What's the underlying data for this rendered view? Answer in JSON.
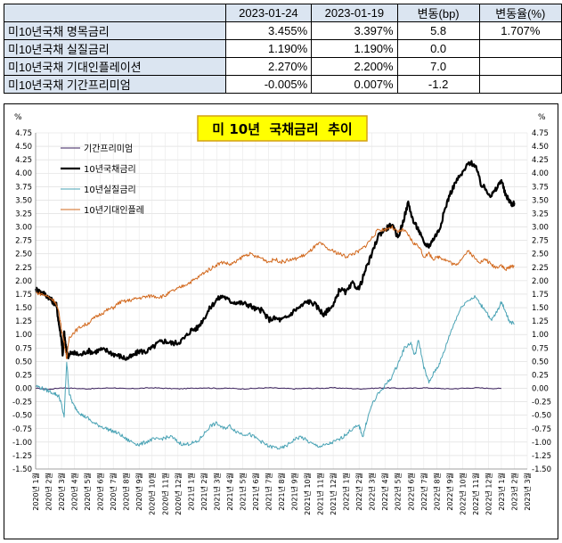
{
  "table": {
    "headers": [
      "",
      "2023-01-24",
      "2023-01-19",
      "변동(bp)",
      "변동율(%)"
    ],
    "rows": [
      {
        "label": "미10년국채 명목금리",
        "v1": "3.455%",
        "v2": "3.397%",
        "bp": "5.8",
        "pct": "1.707%"
      },
      {
        "label": "미10년국채 실질금리",
        "v1": "1.190%",
        "v2": "1.190%",
        "bp": "0.0",
        "pct": ""
      },
      {
        "label": "미10년국채 기대인플레이션",
        "v1": "2.270%",
        "v2": "2.200%",
        "bp": "7.0",
        "pct": ""
      },
      {
        "label": "미10년국채 기간프리미엄",
        "v1": "-0.005%",
        "v2": "0.007%",
        "bp": "-1.2",
        "pct": ""
      }
    ]
  },
  "chart_data": {
    "type": "line",
    "title": "미 10년  국채금리  추이",
    "ylabel_left": "%",
    "ylabel_right": "%",
    "ylim": [
      -1.5,
      4.75
    ],
    "ytick_step": 0.25,
    "ytick_labels": [
      "4.75",
      "4.50",
      "4.25",
      "4.00",
      "3.75",
      "3.50",
      "3.25",
      "3.00",
      "2.75",
      "2.50",
      "2.25",
      "2.00",
      "1.75",
      "1.50",
      "1.25",
      "1.00",
      "0.75",
      "0.50",
      "0.25",
      "0.00",
      "-0.25",
      "-0.50",
      "-0.75",
      "-1.00",
      "-1.25",
      "-1.50"
    ],
    "x_tick_labels": [
      "2020년 1월",
      "2020년 2월",
      "2020년 3월",
      "2020년 4월",
      "2020년 5월",
      "2020년 6월",
      "2020년 7월",
      "2020년 8월",
      "2020년 9월",
      "2020년 10월",
      "2020년 11월",
      "2020년 12월",
      "2021년 1월",
      "2021년 2월",
      "2021년 3월",
      "2021년 4월",
      "2021년 5월",
      "2021년 6월",
      "2021년 7월",
      "2021년 8월",
      "2021년 9월",
      "2021년 10월",
      "2021년 11월",
      "2021년 12월",
      "2022년 1월",
      "2022년 2월",
      "2022년 3월",
      "2022년 4월",
      "2022년 5월",
      "2022년 6월",
      "2022년 7월",
      "2022년 8월",
      "2022년 9월",
      "2022년 10월",
      "2022년 11월",
      "2022년 12월",
      "2023년 1월",
      "2023년 2월",
      "2023년 3월"
    ],
    "legend_placement": "top-left",
    "series": [
      {
        "name": "기간프리미엄",
        "color": "#3a1f5c",
        "width": 1,
        "points": [
          [
            0,
            0.0
          ],
          [
            1,
            -0.02
          ],
          [
            2,
            0.01
          ],
          [
            3,
            0.0
          ],
          [
            4,
            -0.01
          ],
          [
            5,
            0.0
          ],
          [
            6,
            0.01
          ],
          [
            7,
            -0.01
          ],
          [
            8,
            0.0
          ],
          [
            9,
            0.01
          ],
          [
            10,
            0.0
          ],
          [
            11,
            -0.01
          ],
          [
            12,
            0.0
          ],
          [
            13,
            0.01
          ],
          [
            14,
            0.0
          ],
          [
            15,
            0.0
          ],
          [
            16,
            -0.01
          ],
          [
            17,
            0.0
          ],
          [
            18,
            0.01
          ],
          [
            19,
            0.0
          ],
          [
            20,
            -0.01
          ],
          [
            21,
            0.0
          ],
          [
            22,
            0.0
          ],
          [
            23,
            0.01
          ],
          [
            24,
            0.0
          ],
          [
            25,
            -0.01
          ],
          [
            26,
            0.0
          ],
          [
            27,
            0.01
          ],
          [
            28,
            0.0
          ],
          [
            29,
            0.0
          ],
          [
            30,
            0.01
          ],
          [
            31,
            0.0
          ],
          [
            32,
            -0.01
          ],
          [
            33,
            0.0
          ],
          [
            34,
            0.01
          ],
          [
            35,
            0.0
          ],
          [
            36,
            -0.005
          ]
        ]
      },
      {
        "name": "10년국채금리",
        "color": "#000000",
        "width": 2.2,
        "points": [
          [
            0,
            1.85
          ],
          [
            0.3,
            1.8
          ],
          [
            0.6,
            1.77
          ],
          [
            1.0,
            1.7
          ],
          [
            1.3,
            1.62
          ],
          [
            1.6,
            1.55
          ],
          [
            1.8,
            1.2
          ],
          [
            2.0,
            0.9
          ],
          [
            2.1,
            0.6
          ],
          [
            2.2,
            1.05
          ],
          [
            2.35,
            0.75
          ],
          [
            2.5,
            0.6
          ],
          [
            2.7,
            0.65
          ],
          [
            3.0,
            0.65
          ],
          [
            3.5,
            0.62
          ],
          [
            4.0,
            0.7
          ],
          [
            4.5,
            0.67
          ],
          [
            5.0,
            0.72
          ],
          [
            5.5,
            0.7
          ],
          [
            6.0,
            0.64
          ],
          [
            6.5,
            0.6
          ],
          [
            7.0,
            0.55
          ],
          [
            7.5,
            0.6
          ],
          [
            8.0,
            0.69
          ],
          [
            8.5,
            0.68
          ],
          [
            9.0,
            0.75
          ],
          [
            9.5,
            0.85
          ],
          [
            10.0,
            0.88
          ],
          [
            10.5,
            0.84
          ],
          [
            11.0,
            0.85
          ],
          [
            11.5,
            0.93
          ],
          [
            12.0,
            1.08
          ],
          [
            12.5,
            1.12
          ],
          [
            13.0,
            1.3
          ],
          [
            13.5,
            1.5
          ],
          [
            14.0,
            1.65
          ],
          [
            14.5,
            1.72
          ],
          [
            15.0,
            1.62
          ],
          [
            15.5,
            1.6
          ],
          [
            16.0,
            1.58
          ],
          [
            16.5,
            1.55
          ],
          [
            17.0,
            1.47
          ],
          [
            17.5,
            1.45
          ],
          [
            18.0,
            1.28
          ],
          [
            18.5,
            1.3
          ],
          [
            19.0,
            1.27
          ],
          [
            19.5,
            1.33
          ],
          [
            20.0,
            1.45
          ],
          [
            20.5,
            1.52
          ],
          [
            21.0,
            1.62
          ],
          [
            21.5,
            1.58
          ],
          [
            22.0,
            1.45
          ],
          [
            22.3,
            1.35
          ],
          [
            22.6,
            1.48
          ],
          [
            23.0,
            1.52
          ],
          [
            23.5,
            1.85
          ],
          [
            24.0,
            1.78
          ],
          [
            24.5,
            1.95
          ],
          [
            25.0,
            1.85
          ],
          [
            25.5,
            2.2
          ],
          [
            26.0,
            2.5
          ],
          [
            26.5,
            2.85
          ],
          [
            27.0,
            2.95
          ],
          [
            27.5,
            3.05
          ],
          [
            28.0,
            2.8
          ],
          [
            28.4,
            3.1
          ],
          [
            28.8,
            3.45
          ],
          [
            29.2,
            3.1
          ],
          [
            29.6,
            2.95
          ],
          [
            30.0,
            2.7
          ],
          [
            30.4,
            2.65
          ],
          [
            30.8,
            2.8
          ],
          [
            31.2,
            2.95
          ],
          [
            31.6,
            3.3
          ],
          [
            32.0,
            3.6
          ],
          [
            32.5,
            3.85
          ],
          [
            33.0,
            4.0
          ],
          [
            33.5,
            4.2
          ],
          [
            34.0,
            4.15
          ],
          [
            34.4,
            3.8
          ],
          [
            34.8,
            3.7
          ],
          [
            35.2,
            3.58
          ],
          [
            35.6,
            3.7
          ],
          [
            36.0,
            3.88
          ],
          [
            36.3,
            3.6
          ],
          [
            36.6,
            3.5
          ],
          [
            36.8,
            3.42
          ],
          [
            37.0,
            3.45
          ]
        ]
      },
      {
        "name": "10년실질금리",
        "color": "#4aa3b5",
        "width": 1,
        "points": [
          [
            0,
            0.05
          ],
          [
            0.5,
            0.0
          ],
          [
            1.0,
            -0.05
          ],
          [
            1.5,
            -0.1
          ],
          [
            1.8,
            -0.15
          ],
          [
            2.0,
            -0.3
          ],
          [
            2.2,
            -0.55
          ],
          [
            2.4,
            0.5
          ],
          [
            2.6,
            -0.1
          ],
          [
            2.9,
            -0.3
          ],
          [
            3.2,
            -0.4
          ],
          [
            3.6,
            -0.5
          ],
          [
            4.0,
            -0.55
          ],
          [
            4.5,
            -0.65
          ],
          [
            5.0,
            -0.7
          ],
          [
            5.5,
            -0.75
          ],
          [
            6.0,
            -0.8
          ],
          [
            6.5,
            -0.85
          ],
          [
            7.0,
            -0.95
          ],
          [
            7.5,
            -1.0
          ],
          [
            8.0,
            -1.05
          ],
          [
            8.5,
            -1.0
          ],
          [
            9.0,
            -0.95
          ],
          [
            9.5,
            -0.95
          ],
          [
            10.0,
            -0.92
          ],
          [
            10.5,
            -0.9
          ],
          [
            11.0,
            -1.0
          ],
          [
            11.5,
            -1.05
          ],
          [
            12.0,
            -1.02
          ],
          [
            12.5,
            -1.0
          ],
          [
            13.0,
            -0.85
          ],
          [
            13.5,
            -0.7
          ],
          [
            14.0,
            -0.65
          ],
          [
            14.5,
            -0.75
          ],
          [
            15.0,
            -0.7
          ],
          [
            15.5,
            -0.8
          ],
          [
            16.0,
            -0.85
          ],
          [
            16.5,
            -0.85
          ],
          [
            17.0,
            -0.92
          ],
          [
            17.5,
            -1.0
          ],
          [
            18.0,
            -1.08
          ],
          [
            18.5,
            -1.1
          ],
          [
            19.0,
            -1.12
          ],
          [
            19.5,
            -1.05
          ],
          [
            20.0,
            -0.95
          ],
          [
            20.5,
            -0.9
          ],
          [
            21.0,
            -0.98
          ],
          [
            21.5,
            -1.05
          ],
          [
            22.0,
            -1.08
          ],
          [
            22.5,
            -1.05
          ],
          [
            23.0,
            -1.0
          ],
          [
            23.5,
            -0.95
          ],
          [
            24.0,
            -0.85
          ],
          [
            24.5,
            -0.75
          ],
          [
            25.0,
            -0.7
          ],
          [
            25.3,
            -0.9
          ],
          [
            25.6,
            -0.6
          ],
          [
            26.0,
            -0.3
          ],
          [
            26.5,
            -0.1
          ],
          [
            27.0,
            0.05
          ],
          [
            27.5,
            0.2
          ],
          [
            28.0,
            0.45
          ],
          [
            28.5,
            0.75
          ],
          [
            29.0,
            0.85
          ],
          [
            29.3,
            0.6
          ],
          [
            29.6,
            0.9
          ],
          [
            30.0,
            0.4
          ],
          [
            30.4,
            0.1
          ],
          [
            30.8,
            0.3
          ],
          [
            31.2,
            0.45
          ],
          [
            31.6,
            0.7
          ],
          [
            32.0,
            1.0
          ],
          [
            32.5,
            1.3
          ],
          [
            33.0,
            1.55
          ],
          [
            33.5,
            1.65
          ],
          [
            34.0,
            1.7
          ],
          [
            34.4,
            1.55
          ],
          [
            34.8,
            1.45
          ],
          [
            35.2,
            1.25
          ],
          [
            35.6,
            1.4
          ],
          [
            36.0,
            1.6
          ],
          [
            36.3,
            1.45
          ],
          [
            36.6,
            1.25
          ],
          [
            37.0,
            1.19
          ]
        ]
      },
      {
        "name": "10년기대인플레",
        "color": "#d2691e",
        "width": 1,
        "points": [
          [
            0,
            1.78
          ],
          [
            0.5,
            1.75
          ],
          [
            1.0,
            1.7
          ],
          [
            1.5,
            1.62
          ],
          [
            1.8,
            1.4
          ],
          [
            2.0,
            1.1
          ],
          [
            2.2,
            0.85
          ],
          [
            2.4,
            0.55
          ],
          [
            2.6,
            0.95
          ],
          [
            3.0,
            1.05
          ],
          [
            3.5,
            1.15
          ],
          [
            4.0,
            1.2
          ],
          [
            4.5,
            1.3
          ],
          [
            5.0,
            1.38
          ],
          [
            5.5,
            1.45
          ],
          [
            6.0,
            1.5
          ],
          [
            6.5,
            1.6
          ],
          [
            7.0,
            1.62
          ],
          [
            7.5,
            1.65
          ],
          [
            8.0,
            1.68
          ],
          [
            8.5,
            1.7
          ],
          [
            9.0,
            1.72
          ],
          [
            9.5,
            1.7
          ],
          [
            10.0,
            1.72
          ],
          [
            10.5,
            1.8
          ],
          [
            11.0,
            1.85
          ],
          [
            11.5,
            1.92
          ],
          [
            12.0,
            1.98
          ],
          [
            12.5,
            2.05
          ],
          [
            13.0,
            2.15
          ],
          [
            13.5,
            2.22
          ],
          [
            14.0,
            2.3
          ],
          [
            14.5,
            2.35
          ],
          [
            15.0,
            2.3
          ],
          [
            15.5,
            2.35
          ],
          [
            16.0,
            2.45
          ],
          [
            16.5,
            2.5
          ],
          [
            17.0,
            2.45
          ],
          [
            17.5,
            2.42
          ],
          [
            18.0,
            2.35
          ],
          [
            18.5,
            2.4
          ],
          [
            19.0,
            2.35
          ],
          [
            19.5,
            2.38
          ],
          [
            20.0,
            2.4
          ],
          [
            20.5,
            2.45
          ],
          [
            21.0,
            2.5
          ],
          [
            21.5,
            2.62
          ],
          [
            22.0,
            2.7
          ],
          [
            22.5,
            2.6
          ],
          [
            23.0,
            2.55
          ],
          [
            23.5,
            2.5
          ],
          [
            24.0,
            2.45
          ],
          [
            24.5,
            2.5
          ],
          [
            25.0,
            2.55
          ],
          [
            25.5,
            2.65
          ],
          [
            26.0,
            2.8
          ],
          [
            26.5,
            2.95
          ],
          [
            27.0,
            2.95
          ],
          [
            27.5,
            3.0
          ],
          [
            28.0,
            2.9
          ],
          [
            28.4,
            2.95
          ],
          [
            28.8,
            2.85
          ],
          [
            29.2,
            2.7
          ],
          [
            29.6,
            2.65
          ],
          [
            30.0,
            2.45
          ],
          [
            30.4,
            2.5
          ],
          [
            30.8,
            2.4
          ],
          [
            31.2,
            2.45
          ],
          [
            31.6,
            2.4
          ],
          [
            32.0,
            2.35
          ],
          [
            32.5,
            2.28
          ],
          [
            33.0,
            2.45
          ],
          [
            33.5,
            2.55
          ],
          [
            34.0,
            2.4
          ],
          [
            34.4,
            2.35
          ],
          [
            34.8,
            2.4
          ],
          [
            35.2,
            2.3
          ],
          [
            35.6,
            2.25
          ],
          [
            36.0,
            2.3
          ],
          [
            36.3,
            2.2
          ],
          [
            36.6,
            2.25
          ],
          [
            37.0,
            2.27
          ]
        ]
      }
    ]
  }
}
